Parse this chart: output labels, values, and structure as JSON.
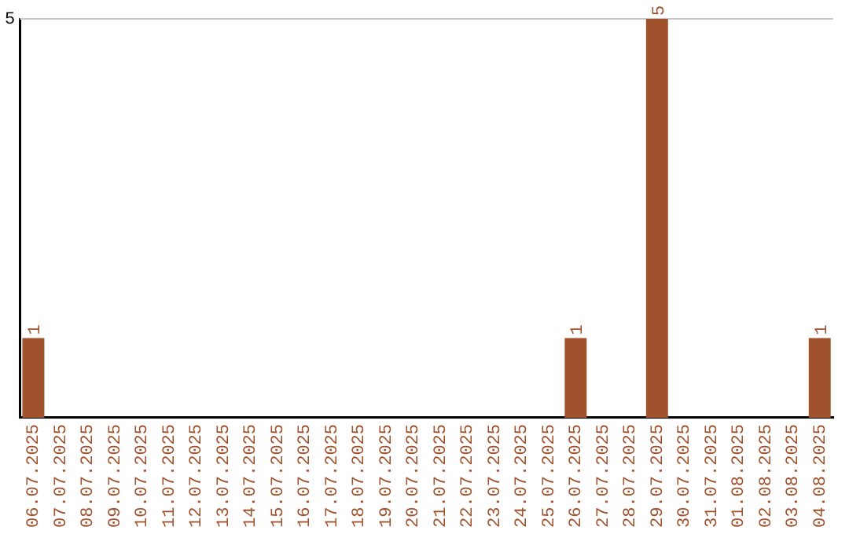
{
  "chart_data": {
    "type": "bar",
    "categories": [
      "06.07.2025",
      "07.07.2025",
      "08.07.2025",
      "09.07.2025",
      "10.07.2025",
      "11.07.2025",
      "12.07.2025",
      "13.07.2025",
      "14.07.2025",
      "15.07.2025",
      "16.07.2025",
      "17.07.2025",
      "18.07.2025",
      "19.07.2025",
      "20.07.2025",
      "21.07.2025",
      "22.07.2025",
      "23.07.2025",
      "24.07.2025",
      "25.07.2025",
      "26.07.2025",
      "27.07.2025",
      "28.07.2025",
      "29.07.2025",
      "30.07.2025",
      "31.07.2025",
      "01.08.2025",
      "02.08.2025",
      "03.08.2025",
      "04.08.2025"
    ],
    "values": [
      1,
      0,
      0,
      0,
      0,
      0,
      0,
      0,
      0,
      0,
      0,
      0,
      0,
      0,
      0,
      0,
      0,
      0,
      0,
      0,
      1,
      0,
      0,
      5,
      0,
      0,
      0,
      0,
      0,
      1
    ],
    "value_labels": [
      "1",
      null,
      null,
      null,
      null,
      null,
      null,
      null,
      null,
      null,
      null,
      null,
      null,
      null,
      null,
      null,
      null,
      null,
      null,
      null,
      "1",
      null,
      null,
      "5",
      null,
      null,
      null,
      null,
      null,
      "1"
    ],
    "color": "#a0522d",
    "ylim": [
      0,
      5
    ],
    "yticks": [
      5
    ],
    "ref_lines": [
      {
        "axis": "y",
        "value": 5,
        "color": "#c8c8c8"
      }
    ],
    "legend": false
  }
}
